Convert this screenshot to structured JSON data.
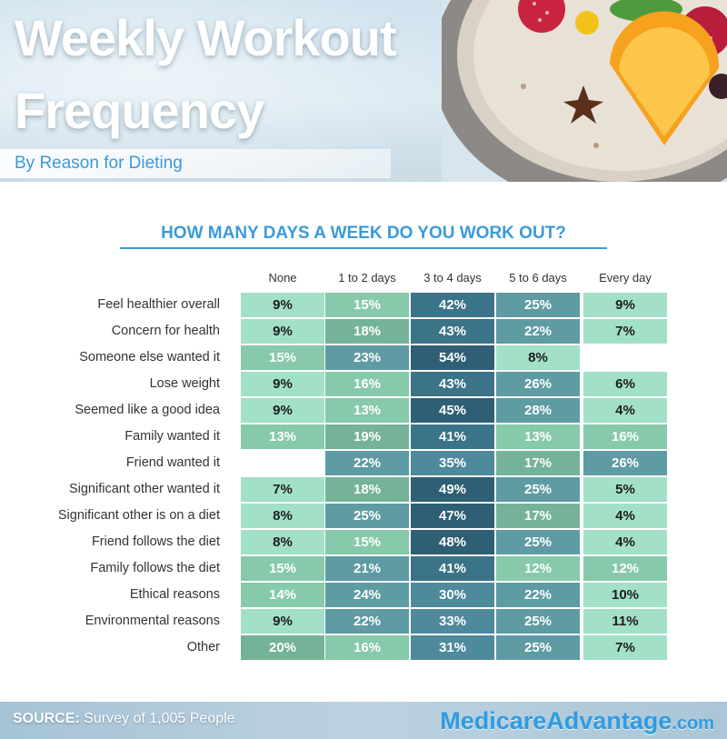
{
  "header": {
    "title_line1": "Weekly Workout",
    "title_line2": "Frequency",
    "subtitle": "By Reason for Dieting"
  },
  "question": "HOW MANY DAYS A WEEK DO YOU WORK OUT?",
  "footer": {
    "source_label": "SOURCE:",
    "source_text": "Survey of 1,005 People",
    "brand_main": "MedicareAdvantage",
    "brand_suffix": ".com"
  },
  "colors": {
    "accent": "#3a9ad9",
    "scale": [
      "#a2e0c8",
      "#87c9ab",
      "#75b398",
      "#5f9ba3",
      "#4e8a9c",
      "#3b7488",
      "#2f5f75"
    ]
  },
  "chart_data": {
    "type": "heatmap",
    "title": "HOW MANY DAYS A WEEK DO YOU WORK OUT?",
    "columns": [
      "None",
      "1 to 2 days",
      "3 to 4 days",
      "5 to 6 days",
      "Every day"
    ],
    "rows": [
      {
        "label": "Feel healthier overall",
        "values": [
          "9%",
          "15%",
          "42%",
          "25%",
          "9%"
        ]
      },
      {
        "label": "Concern for health",
        "values": [
          "9%",
          "18%",
          "43%",
          "22%",
          "7%"
        ]
      },
      {
        "label": "Someone else wanted it",
        "values": [
          "15%",
          "23%",
          "54%",
          "8%",
          ""
        ]
      },
      {
        "label": "Lose weight",
        "values": [
          "9%",
          "16%",
          "43%",
          "26%",
          "6%"
        ]
      },
      {
        "label": "Seemed like a good idea",
        "values": [
          "9%",
          "13%",
          "45%",
          "28%",
          "4%"
        ]
      },
      {
        "label": "Family wanted it",
        "values": [
          "13%",
          "19%",
          "41%",
          "13%",
          "16%"
        ]
      },
      {
        "label": "Friend wanted it",
        "values": [
          "",
          "22%",
          "35%",
          "17%",
          "26%"
        ]
      },
      {
        "label": "Significant other wanted it",
        "values": [
          "7%",
          "18%",
          "49%",
          "25%",
          "5%"
        ]
      },
      {
        "label": "Significant other is on a diet",
        "values": [
          "8%",
          "25%",
          "47%",
          "17%",
          "4%"
        ]
      },
      {
        "label": "Friend follows the diet",
        "values": [
          "8%",
          "15%",
          "48%",
          "25%",
          "4%"
        ]
      },
      {
        "label": "Family follows the diet",
        "values": [
          "15%",
          "21%",
          "41%",
          "12%",
          "12%"
        ]
      },
      {
        "label": "Ethical reasons",
        "values": [
          "14%",
          "24%",
          "30%",
          "22%",
          "10%"
        ]
      },
      {
        "label": "Environmental reasons",
        "values": [
          "9%",
          "22%",
          "33%",
          "25%",
          "11%"
        ]
      },
      {
        "label": "Other",
        "values": [
          "20%",
          "16%",
          "31%",
          "25%",
          "7%"
        ]
      }
    ]
  }
}
